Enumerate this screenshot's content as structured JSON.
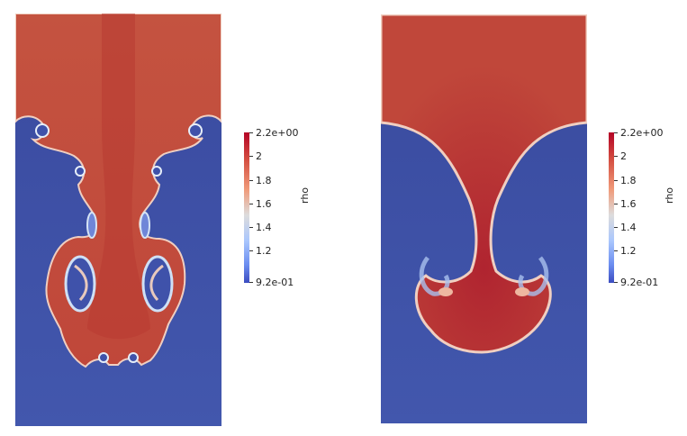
{
  "colorbar": {
    "title": "rho",
    "ticks": [
      "2.2e+00",
      "2",
      "1.8",
      "1.6",
      "1.4",
      "1.2",
      "9.2e-01"
    ]
  },
  "colors": {
    "high": "#b40426",
    "mid": "#dddcdc",
    "low": "#3b4cc0",
    "upper_fluid": "#c0473a",
    "lower_fluid": "#3b4ca8"
  }
}
